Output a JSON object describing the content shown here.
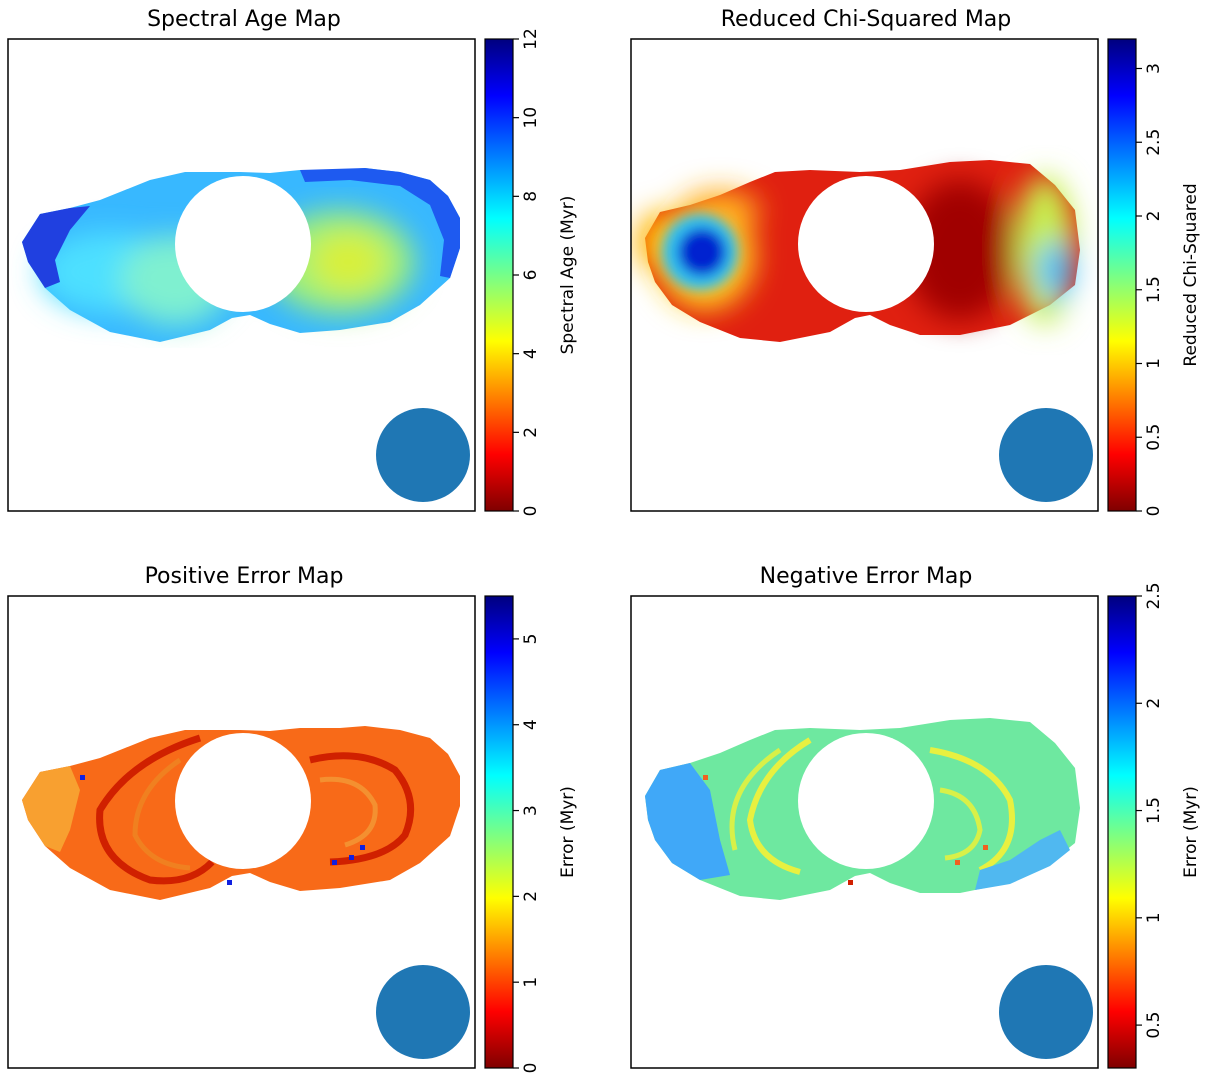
{
  "chart_data": [
    {
      "type": "heatmap",
      "title": "Spectral Age Map",
      "colorbar": {
        "label": "Spectral Age (Myr)",
        "range": [
          0,
          12
        ],
        "ticks": [
          "0",
          "2",
          "4",
          "6",
          "8",
          "10",
          "12"
        ],
        "colormap": "jet"
      },
      "mask": "two-lobed radio source with circular core excluded",
      "regions": [
        {
          "name": "left lobe outer edge",
          "value": 10.5
        },
        {
          "name": "left lobe body",
          "value": 7.5
        },
        {
          "name": "left lobe inner",
          "value": 6.6
        },
        {
          "name": "right lobe outer edge",
          "value": 9.0
        },
        {
          "name": "right lobe body",
          "value": 6.4
        },
        {
          "name": "right lobe hotspot",
          "value": 5.0
        }
      ],
      "beam": "filled circle, lower right",
      "axes_ticks_visible": false
    },
    {
      "type": "heatmap",
      "title": "Reduced Chi-Squared Map",
      "colorbar": {
        "label": "Reduced Chi-Squared",
        "range": [
          0,
          3.2
        ],
        "ticks": [
          "0",
          "0.5",
          "1",
          "1.5",
          "2",
          "2.5",
          "3"
        ],
        "colormap": "jet_r"
      },
      "mask": "two-lobed radio source with circular core excluded",
      "regions": [
        {
          "name": "left lobe tip",
          "value": 3.0
        },
        {
          "name": "left lobe body",
          "value": 0.3
        },
        {
          "name": "right lobe inner",
          "value": 0.1
        },
        {
          "name": "right lobe middle band",
          "value": 1.2
        },
        {
          "name": "right lobe tip",
          "value": 2.1
        }
      ],
      "beam": "filled circle, lower right",
      "axes_ticks_visible": false
    },
    {
      "type": "heatmap",
      "title": "Positive Error Map",
      "colorbar": {
        "label": "Error (Myr)",
        "range": [
          0,
          5.5
        ],
        "ticks": [
          "0",
          "1",
          "2",
          "3",
          "4",
          "5"
        ],
        "colormap": "jet"
      },
      "mask": "two-lobed radio source with circular core excluded",
      "regions": [
        {
          "name": "lobe body",
          "value": 1.3
        },
        {
          "name": "dark ring bands",
          "value": 0.8
        },
        {
          "name": "left lobe tip",
          "value": 1.8
        },
        {
          "name": "isolated pixels",
          "value": 5.0
        }
      ],
      "beam": "filled circle, lower right",
      "axes_ticks_visible": false
    },
    {
      "type": "heatmap",
      "title": "Negative Error Map",
      "colorbar": {
        "label": "Error (Myr)",
        "range": [
          0.3,
          2.5
        ],
        "ticks": [
          "0.5",
          "1",
          "1.5",
          "2",
          "2.5"
        ],
        "colormap": "jet_r"
      },
      "mask": "two-lobed radio source with circular core excluded",
      "regions": [
        {
          "name": "lobe body",
          "value": 1.5
        },
        {
          "name": "yellow ring bands",
          "value": 1.1
        },
        {
          "name": "left lobe tip",
          "value": 2.0
        },
        {
          "name": "isolated pixels",
          "value": 0.6
        }
      ],
      "beam": "filled circle, lower right",
      "axes_ticks_visible": false
    }
  ],
  "colors": {
    "beam": "#1f77b4",
    "frame": "#000000",
    "background": "#ffffff"
  }
}
